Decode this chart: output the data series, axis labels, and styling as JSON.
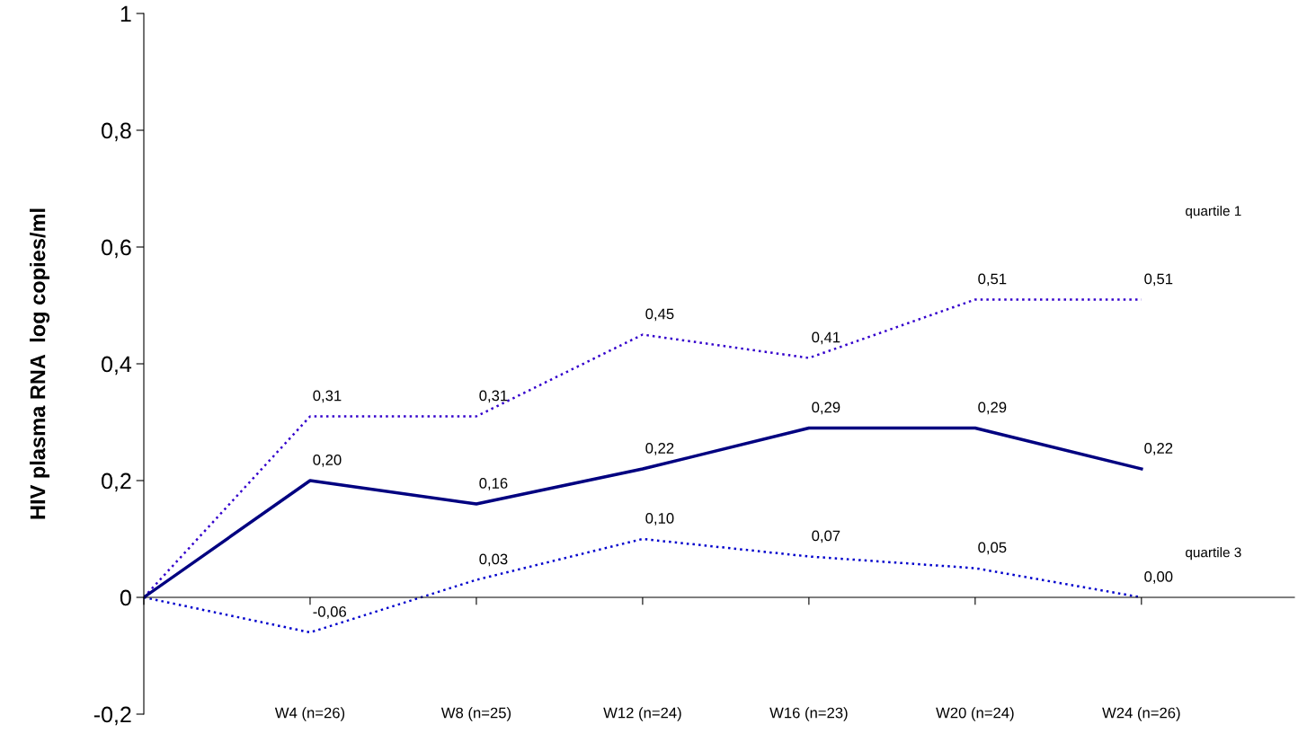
{
  "chart_data": {
    "type": "line",
    "ylabel": "HIV plasma RNA  log copies/ml",
    "categories": [
      null,
      "W4 (n=26)",
      "W8 (n=25)",
      "W12 (n=24)",
      "W16 (n=23)",
      "W20 (n=24)",
      "W24 (n=26)"
    ],
    "ylim": [
      -0.2,
      1
    ],
    "yticks": [
      {
        "value": -0.2,
        "label": "-0,2"
      },
      0,
      {
        "value": 0.2,
        "label": "0,2"
      },
      {
        "value": 0.4,
        "label": "0,4"
      },
      {
        "value": 0.6,
        "label": "0,6"
      },
      {
        "value": 0.8,
        "label": "0,8"
      },
      1
    ],
    "legend": false,
    "marker": "none",
    "series": [
      {
        "name": "quartile 1",
        "color": "#3300cc",
        "line_style": "dotted",
        "values": [
          0,
          0.31,
          0.31,
          0.45,
          0.41,
          0.51,
          0.51
        ],
        "value_labels": [
          null,
          "0,31",
          "0,31",
          "0,45",
          "0,41",
          "0,51",
          "0,51"
        ]
      },
      {
        "color": "#000080",
        "line_style": "solid",
        "values": [
          0,
          0.2,
          0.16,
          0.22,
          0.29,
          0.29,
          0.22
        ],
        "value_labels": [
          null,
          "0,20",
          "0,16",
          "0,22",
          "0,29",
          "0,29",
          "0,22"
        ]
      },
      {
        "name": "quartile 3",
        "color": "#0000cc",
        "line_style": "dotted",
        "values": [
          0,
          -0.06,
          0.03,
          0.1,
          0.07,
          0.05,
          0.0
        ],
        "value_labels": [
          null,
          "-0,06",
          "0,03",
          "0,10",
          "0,07",
          "0,05",
          "0,00"
        ]
      }
    ]
  }
}
